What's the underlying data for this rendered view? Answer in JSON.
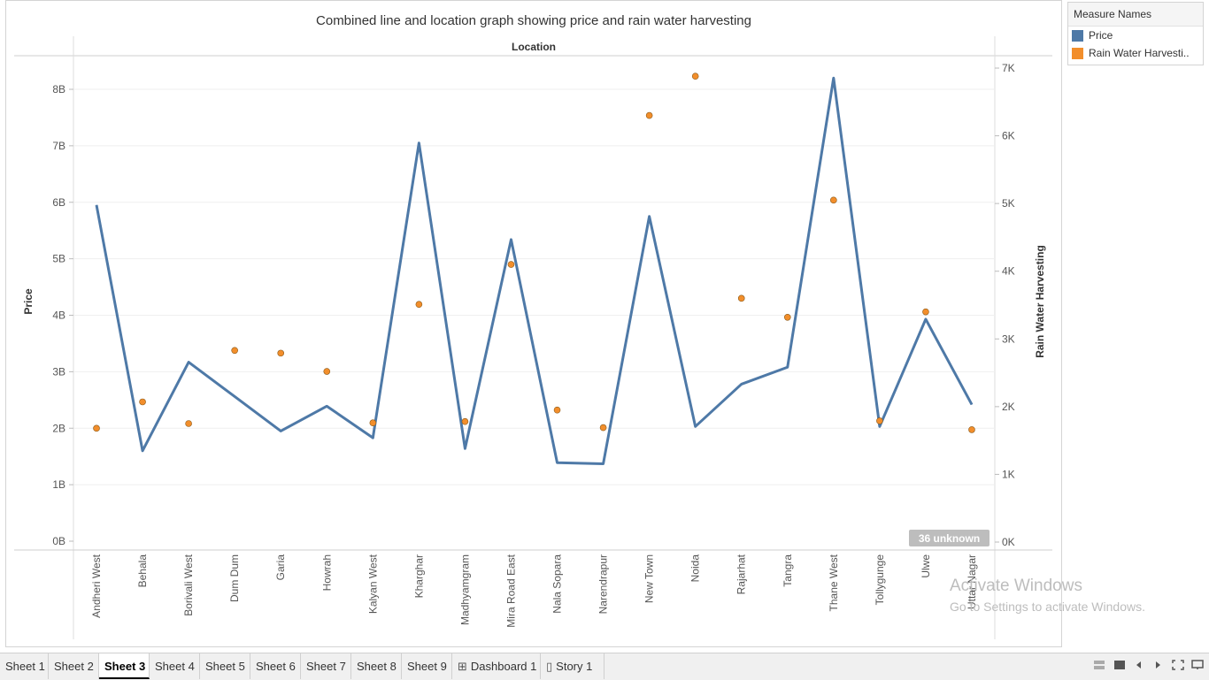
{
  "chart_data": {
    "type": "line",
    "title": "Combined line and location graph showing price and rain water harvesting",
    "column_header": "Location",
    "xlabel": "Location",
    "ylabel": "Price",
    "y2label": "Rain Water Harvesting",
    "categories": [
      "Andheri West",
      "Behala",
      "Borivali West",
      "Dum Dum",
      "Garia",
      "Howrah",
      "Kalyan West",
      "Kharghar",
      "Madhyamgram",
      "Mira Road East",
      "Nala Sopara",
      "Narendrapur",
      "New Town",
      "Noida",
      "Rajarhat",
      "Tangra",
      "Thane West",
      "Tollygunge",
      "Ulwe",
      "Uttar Nagar"
    ],
    "y_ticks": [
      "0B",
      "1B",
      "2B",
      "3B",
      "4B",
      "5B",
      "6B",
      "7B",
      "8B"
    ],
    "y2_ticks": [
      "0K",
      "1K",
      "2K",
      "3K",
      "4K",
      "5K",
      "6K",
      "7K"
    ],
    "ylim": [
      0,
      8500000000
    ],
    "y2lim": [
      0,
      7100
    ],
    "series": [
      {
        "name": "Price",
        "kind": "line",
        "axis": "left",
        "color": "#4e79a7",
        "values": [
          5950000000,
          1600000000,
          3170000000,
          2560000000,
          1950000000,
          2390000000,
          1830000000,
          7050000000,
          1640000000,
          5340000000,
          1390000000,
          1370000000,
          5750000000,
          2030000000,
          2780000000,
          3080000000,
          8200000000,
          2030000000,
          3930000000,
          2420000000
        ]
      },
      {
        "name": "Rain Water Harvesting",
        "kind": "circle",
        "axis": "right",
        "color": "#f28e2b",
        "values": [
          1680,
          2070,
          1750,
          2830,
          2790,
          2520,
          1760,
          3510,
          1780,
          4100,
          1950,
          1690,
          6300,
          6880,
          3600,
          3320,
          5050,
          1790,
          3400,
          1660
        ]
      }
    ],
    "grid": true,
    "legend_position": "right",
    "badge": "36 unknown"
  },
  "legend": {
    "title": "Measure Names",
    "items": [
      {
        "label": "Price",
        "color": "#4e79a7"
      },
      {
        "label": "Rain Water Harvesti..",
        "color": "#f28e2b"
      }
    ]
  },
  "tabs": [
    {
      "label": "Sheet 1"
    },
    {
      "label": "Sheet 2"
    },
    {
      "label": "Sheet 3",
      "active": true
    },
    {
      "label": "Sheet 4"
    },
    {
      "label": "Sheet 5"
    },
    {
      "label": "Sheet 6"
    },
    {
      "label": "Sheet 7"
    },
    {
      "label": "Sheet 8"
    },
    {
      "label": "Sheet 9"
    },
    {
      "label": "Dashboard 1",
      "icon": "dashboard-icon"
    },
    {
      "label": "Story 1",
      "icon": "story-icon"
    }
  ],
  "watermark": {
    "line1": "Activate Windows",
    "line2": "Go to Settings to activate Windows."
  }
}
